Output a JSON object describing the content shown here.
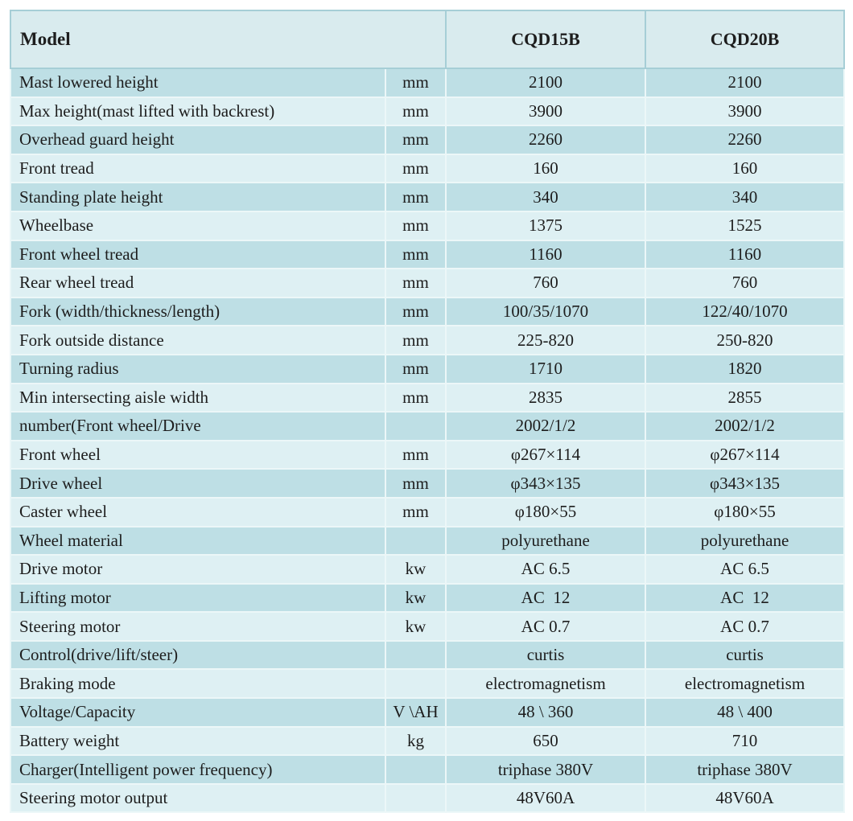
{
  "table": {
    "header": {
      "model_label": "Model",
      "model1": "CQD15B",
      "model2": "CQD20B"
    },
    "rows": [
      {
        "label": "Mast lowered height",
        "unit": "mm",
        "v1": "2100",
        "v2": "2100"
      },
      {
        "label": "Max height(mast lifted with backrest)",
        "unit": "mm",
        "v1": "3900",
        "v2": "3900"
      },
      {
        "label": "Overhead guard height",
        "unit": "mm",
        "v1": "2260",
        "v2": "2260"
      },
      {
        "label": "Front tread",
        "unit": "mm",
        "v1": "160",
        "v2": "160"
      },
      {
        "label": "Standing plate height",
        "unit": "mm",
        "v1": "340",
        "v2": "340"
      },
      {
        "label": "Wheelbase",
        "unit": "mm",
        "v1": "1375",
        "v2": "1525"
      },
      {
        "label": "Front wheel tread",
        "unit": "mm",
        "v1": "1160",
        "v2": "1160"
      },
      {
        "label": "Rear wheel tread",
        "unit": "mm",
        "v1": "760",
        "v2": "760"
      },
      {
        "label": "Fork (width/thickness/length)",
        "unit": "mm",
        "v1": "100/35/1070",
        "v2": "122/40/1070"
      },
      {
        "label": "Fork outside distance",
        "unit": "mm",
        "v1": "225-820",
        "v2": "250-820"
      },
      {
        "label": "Turning radius",
        "unit": "mm",
        "v1": "1710",
        "v2": "1820"
      },
      {
        "label": "Min intersecting aisle width",
        "unit": "mm",
        "v1": "2835",
        "v2": "2855"
      },
      {
        "label": "number(Front wheel/Drive",
        "unit": "",
        "v1": "2002/1/2",
        "v2": "2002/1/2"
      },
      {
        "label": "Front wheel",
        "unit": "mm",
        "v1": "φ267×114",
        "v2": "φ267×114"
      },
      {
        "label": "Drive wheel",
        "unit": "mm",
        "v1": "φ343×135",
        "v2": "φ343×135"
      },
      {
        "label": "Caster wheel",
        "unit": "mm",
        "v1": "φ180×55",
        "v2": "φ180×55"
      },
      {
        "label": "Wheel material",
        "unit": "",
        "v1": "polyurethane",
        "v2": "polyurethane"
      },
      {
        "label": "Drive motor",
        "unit": "kw",
        "v1": "AC 6.5",
        "v2": "AC 6.5"
      },
      {
        "label": "Lifting motor",
        "unit": "kw",
        "v1": "AC  12",
        "v2": "AC  12"
      },
      {
        "label": "Steering motor",
        "unit": "kw",
        "v1": "AC 0.7",
        "v2": "AC 0.7"
      },
      {
        "label": "Control(drive/lift/steer)",
        "unit": "",
        "v1": "curtis",
        "v2": "curtis"
      },
      {
        "label": "Braking mode",
        "unit": "",
        "v1": "electromagnetism",
        "v2": "electromagnetism"
      },
      {
        "label": "Voltage/Capacity",
        "unit": "V \\AH",
        "v1": "48 \\ 360",
        "v2": "48 \\ 400"
      },
      {
        "label": "Battery weight",
        "unit": "kg",
        "v1": "650",
        "v2": "710"
      },
      {
        "label": "Charger(Intelligent power frequency)",
        "unit": "",
        "v1": "triphase 380V",
        "v2": "triphase 380V"
      },
      {
        "label": "Steering motor output",
        "unit": "",
        "v1": "48V60A",
        "v2": "48V60A"
      }
    ]
  },
  "colors": {
    "row_dark": "#bedfe5",
    "row_light": "#def0f3",
    "header_bg": "#d9ebee",
    "outer_border": "#9ecbd3",
    "inner_border": "#ecf7f8",
    "text": "#1d1d1d",
    "page_bg": "#ffffff"
  }
}
